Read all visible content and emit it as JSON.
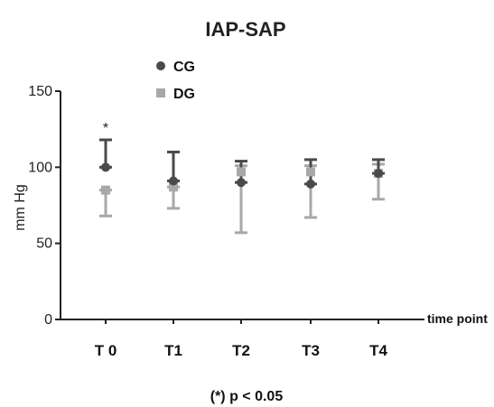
{
  "chart_data": {
    "type": "scatter",
    "title": "IAP-SAP",
    "ylabel": "mm Hg",
    "xlabel": "time point",
    "categories": [
      "T 0",
      "T1",
      "T2",
      "T3",
      "T4"
    ],
    "ylim": [
      0,
      150
    ],
    "yticks": [
      "0",
      "50",
      "100",
      "150"
    ],
    "error_bars": true,
    "legend_position": "top-left",
    "series": [
      {
        "name": "CG",
        "marker": "circle",
        "color": "#4a4a4a",
        "values": [
          100,
          91,
          90,
          89,
          96
        ],
        "err_low": [
          100,
          91,
          90,
          89,
          96
        ],
        "err_high": [
          118,
          110,
          104,
          105,
          105
        ]
      },
      {
        "name": "DG",
        "marker": "square",
        "color": "#a8a8a8",
        "values": [
          85,
          87,
          97,
          97,
          96
        ],
        "err_low": [
          68,
          73,
          57,
          67,
          79
        ],
        "err_high": [
          85,
          87,
          101,
          101,
          102
        ]
      }
    ],
    "annotations": [
      {
        "category": "T 0",
        "text": "*"
      }
    ],
    "footnote": "(*) p < 0.05"
  }
}
